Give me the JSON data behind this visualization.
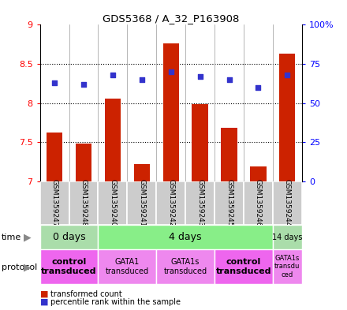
{
  "title": "GDS5368 / A_32_P163908",
  "samples": [
    "GSM1359247",
    "GSM1359248",
    "GSM1359240",
    "GSM1359241",
    "GSM1359242",
    "GSM1359243",
    "GSM1359245",
    "GSM1359246",
    "GSM1359244"
  ],
  "transformed_counts": [
    7.62,
    7.48,
    8.06,
    7.22,
    8.76,
    7.99,
    7.68,
    7.19,
    8.63
  ],
  "percentile_ranks": [
    63,
    62,
    68,
    65,
    70,
    67,
    65,
    60,
    68
  ],
  "ylim_left": [
    7.0,
    9.0
  ],
  "ylim_right": [
    0,
    100
  ],
  "yticks_left": [
    7.0,
    7.5,
    8.0,
    8.5,
    9.0
  ],
  "ytick_labels_left": [
    "7",
    "7.5",
    "8",
    "8.5",
    "9"
  ],
  "yticks_right": [
    0,
    25,
    50,
    75,
    100
  ],
  "ytick_labels_right": [
    "0",
    "25",
    "50",
    "75",
    "100%"
  ],
  "bar_color": "#cc2200",
  "dot_color": "#3333cc",
  "time_groups": [
    {
      "label": "0 days",
      "start": 0,
      "end": 2,
      "color": "#aaddaa",
      "fontsize": 9
    },
    {
      "label": "4 days",
      "start": 2,
      "end": 8,
      "color": "#88ee88",
      "fontsize": 9
    },
    {
      "label": "14 days",
      "start": 8,
      "end": 9,
      "color": "#aaddaa",
      "fontsize": 7
    }
  ],
  "protocol_groups": [
    {
      "label": "control\ntransduced",
      "start": 0,
      "end": 2,
      "color": "#ee66ee",
      "bold": true,
      "fontsize": 8
    },
    {
      "label": "GATA1\ntransduced",
      "start": 2,
      "end": 4,
      "color": "#ee88ee",
      "bold": false,
      "fontsize": 7
    },
    {
      "label": "GATA1s\ntransduced",
      "start": 4,
      "end": 6,
      "color": "#ee88ee",
      "bold": false,
      "fontsize": 7
    },
    {
      "label": "control\ntransduced",
      "start": 6,
      "end": 8,
      "color": "#ee66ee",
      "bold": true,
      "fontsize": 8
    },
    {
      "label": "GATA1s\ntransdu\nced",
      "start": 8,
      "end": 9,
      "color": "#ee88ee",
      "bold": false,
      "fontsize": 6
    }
  ],
  "sample_box_color": "#cccccc",
  "separator_color": "#999999",
  "grid_yticks": [
    7.5,
    8.0,
    8.5
  ],
  "bar_width": 0.55
}
